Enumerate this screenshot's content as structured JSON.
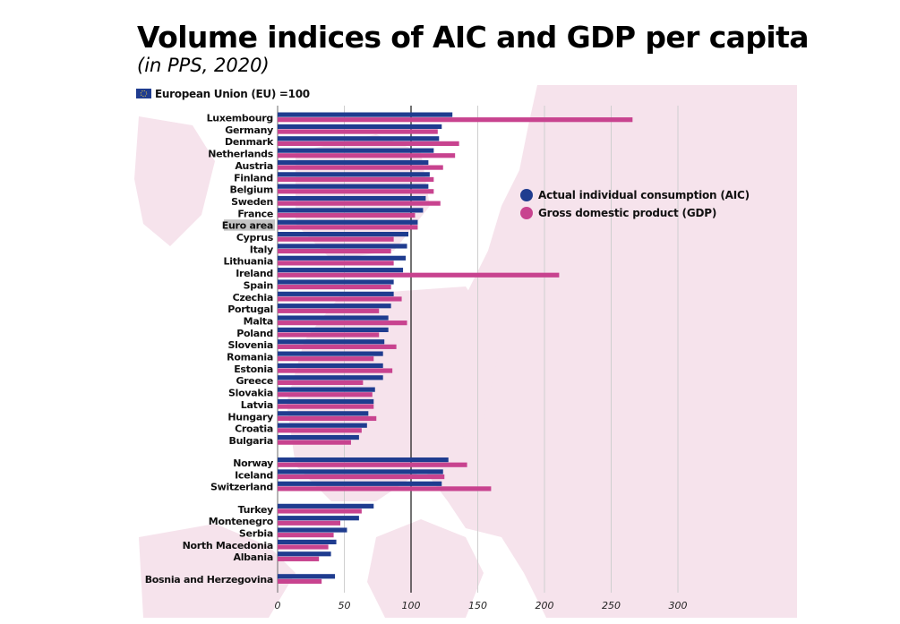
{
  "title": "Volume indices of AIC and GDP per capita",
  "subtitle": "(in PPS, 2020)",
  "eu_note": "European Union (EU) =100",
  "colors": {
    "aic": "#1f3c8f",
    "gdp": "#c8438f",
    "highlight_bg": "#c4c4c4",
    "map": "#f6e3ec",
    "grid": "#cfcfcf"
  },
  "chart_data": {
    "type": "bar",
    "orientation": "horizontal",
    "title": "Volume indices of AIC and GDP per capita",
    "subtitle": "(in PPS, 2020)",
    "xlim": [
      0,
      300
    ],
    "xticks": [
      0,
      50,
      100,
      150,
      200,
      250,
      300
    ],
    "reference_line": 100,
    "grid": true,
    "legend_position": "right",
    "highlight_category": "Euro area",
    "groups": [
      [
        "Luxembourg",
        "Germany",
        "Denmark",
        "Netherlands",
        "Austria",
        "Finland",
        "Belgium",
        "Sweden",
        "France",
        "Euro area",
        "Cyprus",
        "Italy",
        "Lithuania",
        "Ireland",
        "Spain",
        "Czechia",
        "Portugal",
        "Malta",
        "Poland",
        "Slovenia",
        "Romania",
        "Estonia",
        "Greece",
        "Slovakia",
        "Latvia",
        "Hungary",
        "Croatia",
        "Bulgaria"
      ],
      [
        "Norway",
        "Iceland",
        "Switzerland"
      ],
      [
        "Turkey",
        "Montenegro",
        "Serbia",
        "North Macedonia",
        "Albania"
      ],
      [
        "Bosnia and Herzegovina"
      ]
    ],
    "categories": [
      "Luxembourg",
      "Germany",
      "Denmark",
      "Netherlands",
      "Austria",
      "Finland",
      "Belgium",
      "Sweden",
      "France",
      "Euro area",
      "Cyprus",
      "Italy",
      "Lithuania",
      "Ireland",
      "Spain",
      "Czechia",
      "Portugal",
      "Malta",
      "Poland",
      "Slovenia",
      "Romania",
      "Estonia",
      "Greece",
      "Slovakia",
      "Latvia",
      "Hungary",
      "Croatia",
      "Bulgaria",
      "Norway",
      "Iceland",
      "Switzerland",
      "Turkey",
      "Montenegro",
      "Serbia",
      "North Macedonia",
      "Albania",
      "Bosnia and Herzegovina"
    ],
    "series": [
      {
        "name": "Actual individual consumption (AIC)",
        "key": "aic",
        "values": [
          131,
          123,
          121,
          117,
          113,
          114,
          113,
          111,
          109,
          105,
          98,
          97,
          96,
          94,
          87,
          87,
          85,
          83,
          83,
          80,
          79,
          79,
          79,
          73,
          72,
          68,
          67,
          61,
          128,
          124,
          123,
          72,
          61,
          52,
          44,
          40,
          43
        ]
      },
      {
        "name": "Gross domestic product (GDP)",
        "key": "gdp",
        "values": [
          266,
          120,
          136,
          133,
          124,
          117,
          117,
          122,
          103,
          105,
          87,
          85,
          87,
          211,
          85,
          93,
          76,
          97,
          76,
          89,
          72,
          86,
          64,
          71,
          72,
          74,
          63,
          55,
          142,
          125,
          160,
          63,
          47,
          42,
          38,
          31,
          33
        ]
      }
    ]
  }
}
